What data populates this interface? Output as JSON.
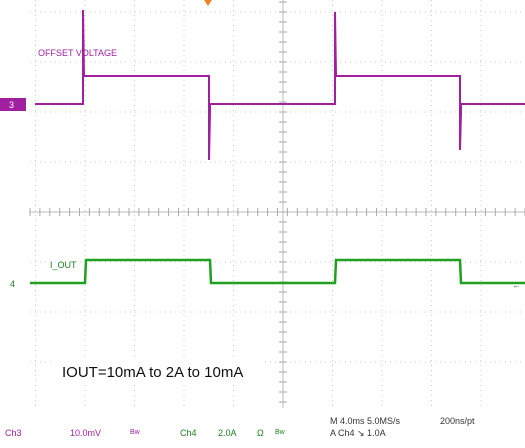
{
  "traces": {
    "ch3_label": "OFFSET VOLTAGE",
    "ch4_label": "I_OUT",
    "ch3_marker": "3",
    "ch4_marker": "4"
  },
  "annotation": "IOUT=10mA to 2A to 10mA",
  "status": {
    "ch3": "Ch3",
    "ch3_scale": "10.0mV",
    "ch3_bw": "Bw",
    "ch4": "Ch4",
    "ch4_scale": "2.0A",
    "ch4_ohm": "Ω",
    "ch4_bw": "Bw",
    "timebase": "M 4.0ms 5.0MS/s",
    "trigger": "A  Ch4  ↘  1.0A",
    "resolution": "200ns/pt"
  }
}
